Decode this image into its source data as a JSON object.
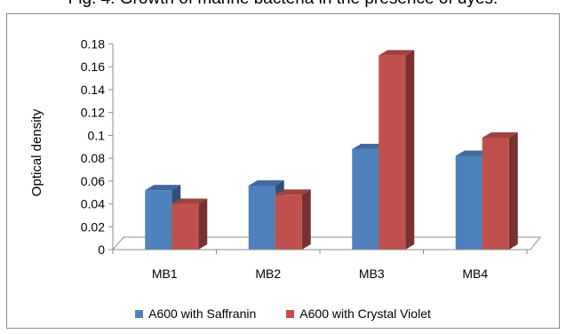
{
  "caption": "Fig. 4: Growth of marine bacteria in the presence of dyes.",
  "chart_data": {
    "type": "bar",
    "title": "Fig. 4: Growth of marine bacteria in the presence of dyes.",
    "xlabel": "",
    "ylabel": "Optical density",
    "categories": [
      "MB1",
      "MB2",
      "MB3",
      "MB4"
    ],
    "ylim": [
      0,
      0.18
    ],
    "yticks": [
      0,
      0.02,
      0.04,
      0.06,
      0.08,
      0.1,
      0.12,
      0.14,
      0.16,
      0.18
    ],
    "ytick_labels": [
      "0",
      "0.02",
      "0.04",
      "0.06",
      "0.08",
      "0.1",
      "0.12",
      "0.14",
      "0.16",
      "0.18"
    ],
    "grid": false,
    "legend_position": "bottom",
    "series": [
      {
        "name": "A600 with Saffranin",
        "color": "#4F81BD",
        "values": [
          0.052,
          0.056,
          0.088,
          0.082
        ]
      },
      {
        "name": "A600 with Crystal Violet",
        "color": "#C0504D",
        "values": [
          0.04,
          0.048,
          0.17,
          0.098
        ]
      }
    ]
  }
}
